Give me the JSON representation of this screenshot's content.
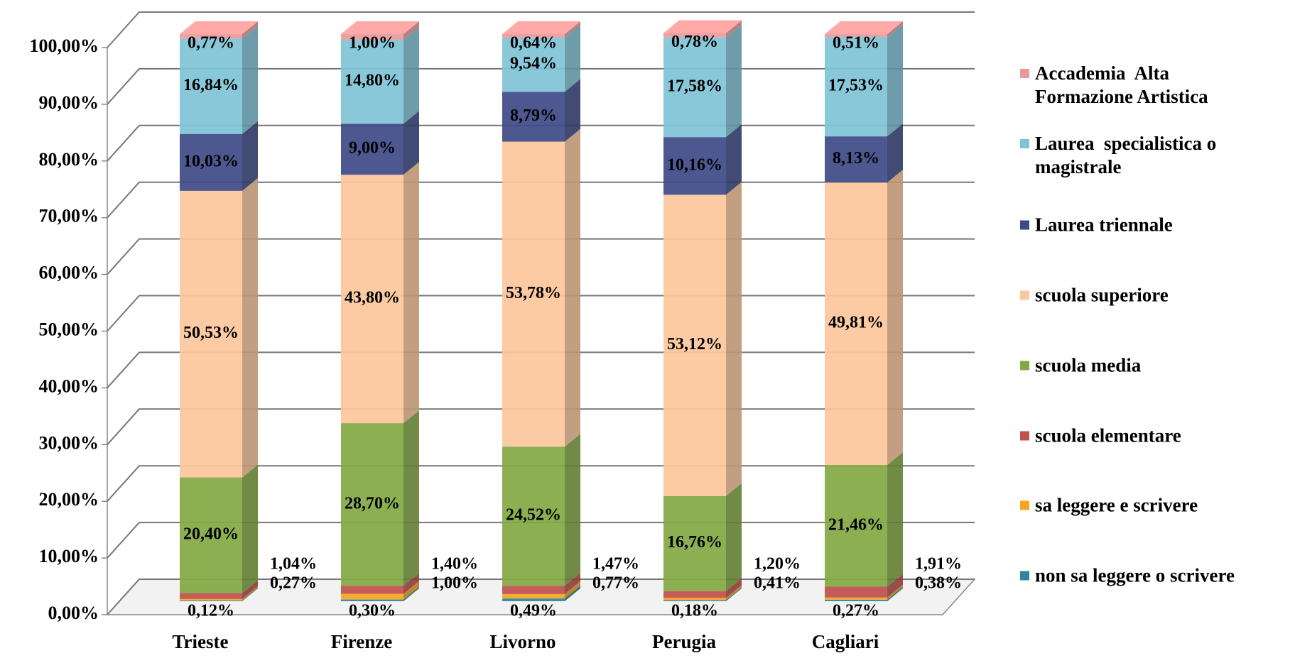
{
  "chart_data": {
    "type": "stacked-bar-3d",
    "categories": [
      "Trieste",
      "Firenze",
      "Livorno",
      "Perugia",
      "Cagliari"
    ],
    "series": [
      {
        "name": "non sa leggere o scrivere",
        "color": "#31849b",
        "values": [
          0.12,
          0.3,
          0.49,
          0.18,
          0.27
        ],
        "value_labels": [
          "0,12%",
          "0,30%",
          "0,49%",
          "0,18%",
          "0,27%"
        ]
      },
      {
        "name": "sa leggere e scrivere",
        "color": "#f5a623",
        "values": [
          0.27,
          1.0,
          0.77,
          0.41,
          0.38
        ],
        "value_labels": [
          "0,27%",
          "1,00%",
          "0,77%",
          "0,41%",
          "0,38%"
        ]
      },
      {
        "name": "scuola elementare",
        "color": "#c0504d",
        "values": [
          1.04,
          1.4,
          1.47,
          1.2,
          1.91
        ],
        "value_labels": [
          "1,04%",
          "1,40%",
          "1,47%",
          "1,20%",
          "1,91%"
        ]
      },
      {
        "name": "scuola media",
        "color": "#82a843",
        "values": [
          20.4,
          28.7,
          24.52,
          16.76,
          21.46
        ],
        "value_labels": [
          "20,40%",
          "28,70%",
          "24,52%",
          "16,76%",
          "21,46%"
        ]
      },
      {
        "name": "scuola superiore",
        "color": "#fcc79b",
        "values": [
          50.53,
          43.8,
          53.78,
          53.12,
          49.81
        ],
        "value_labels": [
          "50,53%",
          "43,80%",
          "53,78%",
          "53,12%",
          "49,81%"
        ]
      },
      {
        "name": "Laurea triennale",
        "color": "#3d4a86",
        "values": [
          10.03,
          9.0,
          8.79,
          10.16,
          8.13
        ],
        "value_labels": [
          "10,03%",
          "9,00%",
          "8,79%",
          "10,16%",
          "8,13%"
        ]
      },
      {
        "name": "Laurea  specialistica o magistrale",
        "color": "#7fc3d6",
        "values": [
          16.84,
          14.8,
          9.54,
          17.58,
          17.53
        ],
        "value_labels": [
          "16,84%",
          "14,80%",
          "9,54%",
          "17,58%",
          "17,53%"
        ]
      },
      {
        "name": "Accademia  Alta Formazione Artistica",
        "color": "#e89a9a",
        "values": [
          0.77,
          1.0,
          0.64,
          0.78,
          0.51
        ],
        "value_labels": [
          "0,77%",
          "1,00%",
          "0,64%",
          "0,78%",
          "0,51%"
        ]
      }
    ],
    "ylim": [
      0,
      100
    ],
    "yticks": [
      {
        "value": 0,
        "label": "0,00%"
      },
      {
        "value": 10,
        "label": "10,00%"
      },
      {
        "value": 20,
        "label": "20,00%"
      },
      {
        "value": 30,
        "label": "30,00%"
      },
      {
        "value": 40,
        "label": "40,00%"
      },
      {
        "value": 50,
        "label": "50,00%"
      },
      {
        "value": 60,
        "label": "60,00%"
      },
      {
        "value": 70,
        "label": "70,00%"
      },
      {
        "value": 80,
        "label": "80,00%"
      },
      {
        "value": 90,
        "label": "90,00%"
      },
      {
        "value": 100,
        "label": "100,00%"
      }
    ],
    "grid": true,
    "legend": "right"
  }
}
